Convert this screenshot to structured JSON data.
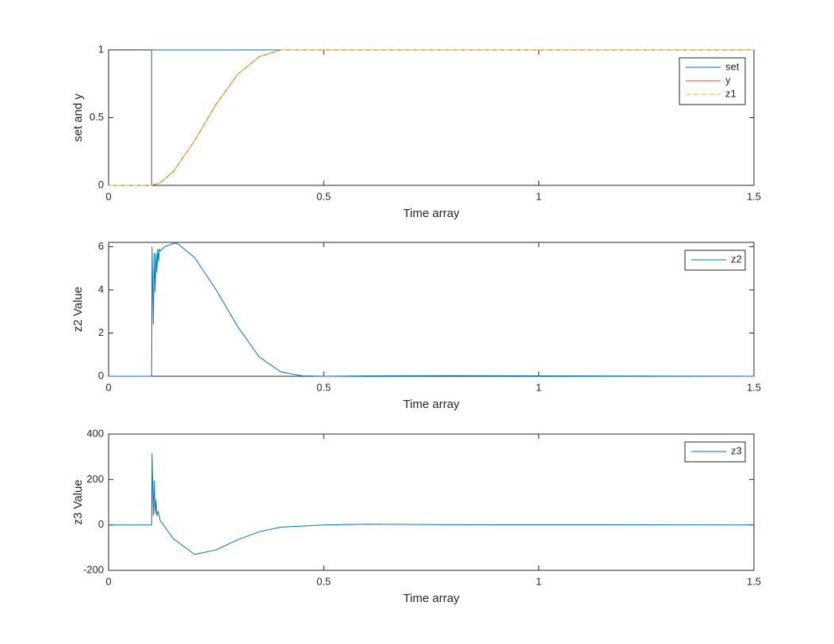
{
  "chart_data": [
    {
      "type": "line",
      "x_label": "Time array",
      "y_label": "set and y",
      "x": [
        0,
        0.1,
        0.1,
        0.12,
        0.15,
        0.2,
        0.25,
        0.3,
        0.35,
        0.4,
        0.5,
        1.0,
        1.5
      ],
      "series": [
        {
          "name": "set",
          "color": "#0072bd",
          "line_style": "solid",
          "values": [
            0,
            0,
            1,
            1,
            1,
            1,
            1,
            1,
            1,
            1,
            1,
            1,
            1
          ]
        },
        {
          "name": "y",
          "color": "#d95319",
          "line_style": "solid",
          "values": [
            0,
            0,
            0,
            0.02,
            0.1,
            0.33,
            0.6,
            0.82,
            0.95,
            1.0,
            1.0,
            1.0,
            1.0
          ]
        },
        {
          "name": "z1",
          "color": "#edb120",
          "line_style": "dashed",
          "values": [
            0,
            0,
            0,
            0.02,
            0.1,
            0.33,
            0.6,
            0.82,
            0.95,
            1.0,
            1.0,
            1.0,
            1.0
          ]
        }
      ],
      "xlim": [
        0,
        1.5
      ],
      "xticks": [
        0,
        0.5,
        1,
        1.5
      ],
      "ylim": [
        0,
        1
      ],
      "yticks": [
        0,
        0.5,
        1
      ],
      "grid": false,
      "legend": "northeast"
    },
    {
      "type": "line",
      "x_label": "Time array",
      "y_label": "z2 Value",
      "x": [
        0,
        0.1,
        0.101,
        0.104,
        0.106,
        0.108,
        0.11,
        0.112,
        0.114,
        0.116,
        0.118,
        0.12,
        0.13,
        0.15,
        0.16,
        0.2,
        0.25,
        0.3,
        0.35,
        0.4,
        0.45,
        0.5,
        0.6,
        0.8,
        1.5
      ],
      "series": [
        {
          "name": "z2",
          "color": "#0072bd",
          "line_style": "solid",
          "values": [
            0,
            0,
            6.0,
            2.4,
            5.7,
            3.9,
            5.7,
            4.8,
            5.9,
            5.3,
            5.9,
            5.8,
            6.0,
            6.15,
            6.15,
            5.5,
            4.0,
            2.3,
            0.9,
            0.2,
            0.02,
            0,
            0.02,
            0.03,
            0
          ]
        }
      ],
      "xlim": [
        0,
        1.5
      ],
      "xticks": [
        0,
        0.5,
        1,
        1.5
      ],
      "ylim": [
        0,
        6.2
      ],
      "yticks": [
        0,
        2,
        4,
        6
      ],
      "grid": false,
      "legend": "northeast"
    },
    {
      "type": "line",
      "x_label": "Time array",
      "y_label": "z3 Value",
      "x": [
        0,
        0.1,
        0.101,
        0.104,
        0.106,
        0.108,
        0.11,
        0.112,
        0.115,
        0.12,
        0.15,
        0.2,
        0.25,
        0.3,
        0.35,
        0.4,
        0.5,
        0.6,
        0.8,
        1.5
      ],
      "series": [
        {
          "name": "z3",
          "color": "#0072bd",
          "line_style": "solid",
          "values": [
            0,
            0,
            315,
            40,
            195,
            50,
            110,
            40,
            60,
            20,
            -60,
            -130,
            -110,
            -65,
            -30,
            -10,
            0,
            3,
            1,
            0
          ]
        }
      ],
      "xlim": [
        0,
        1.5
      ],
      "xticks": [
        0,
        0.5,
        1,
        1.5
      ],
      "ylim": [
        -200,
        400
      ],
      "yticks": [
        -200,
        0,
        200,
        400
      ],
      "grid": false,
      "legend": "northeast"
    }
  ]
}
